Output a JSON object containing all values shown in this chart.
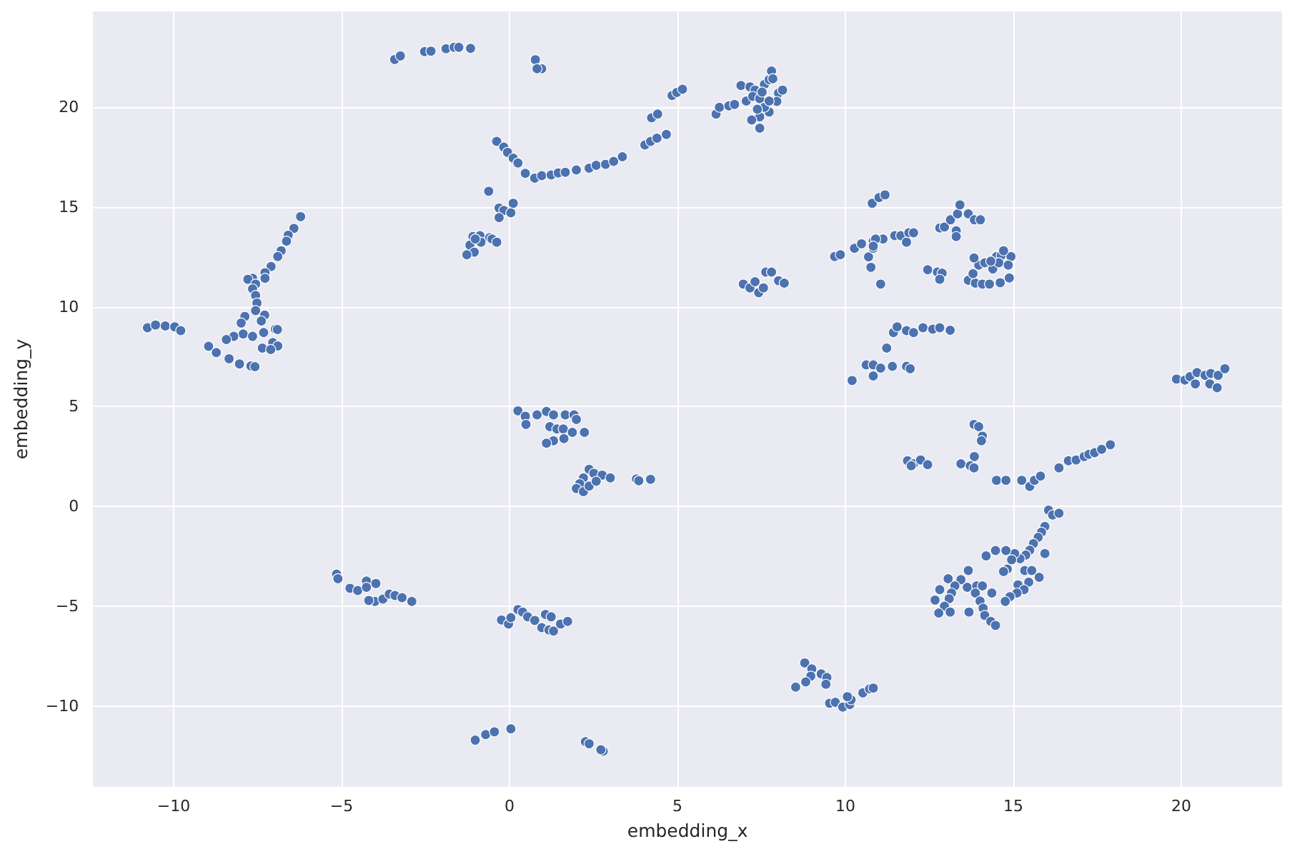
{
  "chart_data": {
    "type": "scatter",
    "xlabel": "embedding_x",
    "ylabel": "embedding_y",
    "marker": "circle",
    "grid": true,
    "color": "#4c72b0",
    "xlim": [
      -12.4,
      23.0
    ],
    "ylim": [
      -14.05,
      24.8
    ],
    "xticks": [
      {
        "value": -10,
        "label": "−10"
      },
      {
        "value": -5,
        "label": "−5"
      },
      0,
      5,
      10,
      15,
      20
    ],
    "yticks": [
      {
        "value": -10,
        "label": "−10"
      },
      {
        "value": -5,
        "label": "−5"
      },
      0,
      5,
      10,
      15,
      20
    ],
    "x": [
      -3.42,
      -3.25,
      -2.53,
      -2.34,
      -1.89,
      -1.65,
      -1.51,
      -1.16,
      -6.22,
      -6.42,
      -6.59,
      -6.64,
      -6.8,
      -6.9,
      -7.1,
      -7.28,
      -7.28,
      -7.65,
      -7.79,
      -7.56,
      -7.65,
      -7.56,
      -7.52,
      -7.56,
      -7.29,
      -7.88,
      -7.99,
      -7.39,
      -6.97,
      -6.91,
      -7.32,
      -7.93,
      -7.65,
      -8.21,
      -8.43,
      -7.05,
      -6.9,
      -7.36,
      -7.11,
      -8.96,
      -8.73,
      -8.35,
      -8.04,
      -7.7,
      -7.58,
      -10.78,
      -10.54,
      -10.25,
      -9.97,
      -9.79,
      -0.41,
      -0.2,
      -0.62,
      -1.09,
      -0.88,
      -0.59,
      -0.52,
      -1.18,
      -1.05,
      -1.27,
      -0.85,
      -1.02,
      -0.38,
      -0.31,
      -0.17,
      0.04,
      0.11,
      -0.31,
      -0.38,
      -0.17,
      -0.06,
      0.11,
      0.25,
      0.47,
      0.75,
      0.96,
      1.24,
      1.45,
      1.66,
      1.99,
      2.37,
      2.58,
      2.86,
      3.1,
      3.36,
      4.03,
      4.2,
      4.39,
      4.67,
      4.23,
      4.41,
      4.84,
      4.98,
      5.15,
      0.77,
      0.96,
      0.82,
      6.15,
      6.25,
      6.53,
      6.7,
      6.89,
      7.05,
      7.16,
      7.31,
      7.24,
      7.45,
      7.59,
      7.73,
      7.8,
      7.84,
      8.01,
      8.13,
      7.96,
      7.73,
      7.45,
      7.21,
      7.45,
      7.59,
      7.38,
      7.52,
      7.73,
      6.96,
      7.16,
      7.42,
      7.56,
      7.63,
      7.8,
      8.01,
      8.18,
      7.31,
      9.68,
      9.85,
      10.27,
      10.48,
      10.69,
      10.83,
      10.76,
      11.05,
      10.83,
      11.12,
      10.8,
      11.0,
      11.18,
      11.21,
      10.62,
      10.83,
      11.05,
      10.83,
      10.2,
      10.9,
      11.47,
      11.65,
      11.89,
      12.03,
      11.82,
      10.83,
      12.81,
      12.95,
      13.13,
      13.3,
      13.34,
      13.41,
      13.66,
      13.84,
      14.02,
      13.3,
      12.45,
      12.74,
      12.88,
      12.81,
      13.66,
      13.87,
      14.08,
      14.29,
      14.61,
      14.88,
      13.8,
      13.97,
      14.15,
      14.39,
      13.83,
      14.5,
      14.64,
      14.93,
      14.71,
      14.57,
      14.85,
      14.33,
      11.23,
      11.43,
      11.54,
      11.82,
      12.03,
      12.31,
      12.6,
      12.81,
      13.12,
      11.4,
      11.82,
      11.93,
      19.86,
      20.11,
      20.26,
      20.47,
      20.42,
      20.71,
      20.85,
      20.88,
      21.07,
      21.1,
      21.3,
      0.25,
      0.47,
      0.49,
      0.82,
      1.1,
      1.31,
      1.66,
      1.92,
      1.99,
      1.2,
      1.41,
      1.6,
      1.87,
      2.23,
      1.62,
      1.31,
      1.1,
      2.37,
      2.51,
      2.76,
      3.0,
      2.2,
      2.09,
      1.99,
      2.2,
      2.37,
      2.58,
      3.78,
      3.85,
      4.2,
      -0.24,
      -0.03,
      0.04,
      0.25,
      0.39,
      0.54,
      0.75,
      0.96,
      1.07,
      1.17,
      1.31,
      1.24,
      1.52,
      1.73,
      -1.02,
      -0.71,
      -0.45,
      0.04,
      2.26,
      2.37,
      2.79,
      2.72,
      8.79,
      9.0,
      8.97,
      8.82,
      8.52,
      9.28,
      9.45,
      9.42,
      9.53,
      9.7,
      9.92,
      10.13,
      10.17,
      10.06,
      10.52,
      10.72,
      10.83,
      -5.15,
      -5.11,
      -4.75,
      -4.52,
      -4.26,
      -3.98,
      -4.26,
      -4.01,
      -4.19,
      -3.77,
      -3.58,
      -3.41,
      -3.2,
      -2.91,
      11.85,
      12.03,
      12.24,
      12.45,
      11.96,
      13.83,
      13.97,
      14.08,
      14.05,
      13.84,
      13.44,
      13.72,
      13.83,
      14.5,
      14.78,
      15.25,
      15.49,
      15.63,
      15.81,
      16.36,
      16.64,
      16.87,
      17.11,
      17.25,
      17.42,
      17.63,
      17.89,
      16.05,
      16.17,
      16.36,
      15.94,
      15.84,
      15.74,
      15.6,
      15.49,
      15.94,
      15.37,
      15.2,
      15.04,
      14.95,
      14.78,
      14.47,
      14.19,
      14.82,
      14.71,
      15.34,
      15.55,
      15.77,
      15.46,
      15.14,
      15.32,
      15.11,
      14.9,
      14.76,
      13.66,
      13.06,
      13.44,
      13.26,
      13.63,
      13.91,
      14.08,
      14.36,
      12.81,
      13.16,
      12.67,
      13.09,
      12.95,
      12.78,
      13.12,
      13.68,
      13.87,
      14.01,
      14.1,
      14.15,
      14.33,
      14.47
    ],
    "values": [
      22.39,
      22.57,
      22.79,
      22.81,
      22.93,
      23.0,
      23.0,
      22.95,
      14.52,
      13.93,
      13.59,
      13.29,
      12.81,
      12.52,
      12.02,
      11.71,
      11.43,
      11.43,
      11.38,
      11.14,
      10.9,
      10.57,
      10.19,
      9.81,
      9.59,
      9.52,
      9.19,
      9.29,
      8.88,
      8.86,
      8.71,
      8.64,
      8.52,
      8.52,
      8.36,
      8.21,
      8.04,
      7.93,
      7.86,
      8.02,
      7.71,
      7.4,
      7.14,
      7.04,
      7.0,
      8.95,
      9.09,
      9.04,
      9.0,
      8.81,
      18.31,
      18.04,
      15.79,
      13.52,
      13.57,
      13.47,
      13.4,
      13.09,
      12.74,
      12.61,
      13.24,
      13.4,
      13.24,
      14.95,
      14.83,
      14.71,
      15.19,
      14.47,
      18.29,
      18.0,
      17.74,
      17.45,
      17.21,
      16.69,
      16.45,
      16.57,
      16.61,
      16.71,
      16.74,
      16.86,
      16.95,
      17.09,
      17.14,
      17.29,
      17.52,
      18.11,
      18.29,
      18.45,
      18.64,
      19.47,
      19.66,
      20.59,
      20.74,
      20.9,
      22.38,
      21.93,
      21.93,
      19.66,
      20.0,
      20.07,
      20.14,
      21.09,
      20.31,
      21.02,
      20.86,
      20.54,
      20.43,
      21.14,
      21.38,
      21.81,
      21.43,
      20.71,
      20.86,
      20.29,
      19.76,
      19.52,
      19.36,
      18.95,
      20.0,
      19.9,
      20.76,
      20.31,
      11.14,
      10.95,
      10.71,
      10.95,
      11.74,
      11.74,
      11.31,
      11.19,
      11.26,
      12.52,
      12.61,
      12.93,
      13.16,
      12.5,
      12.93,
      11.98,
      11.14,
      13.29,
      13.4,
      15.19,
      15.47,
      15.61,
      7.93,
      7.09,
      7.09,
      6.93,
      6.54,
      6.31,
      13.4,
      13.57,
      13.57,
      13.71,
      13.71,
      13.24,
      13.04,
      13.95,
      14.0,
      14.36,
      13.81,
      14.66,
      15.11,
      14.66,
      14.36,
      14.36,
      13.52,
      11.86,
      11.74,
      11.69,
      11.38,
      11.33,
      11.19,
      11.14,
      11.14,
      11.21,
      11.45,
      11.66,
      12.09,
      12.21,
      11.9,
      12.45,
      12.52,
      12.57,
      12.52,
      12.81,
      12.21,
      12.09,
      12.29,
      7.93,
      8.71,
      9.0,
      8.81,
      8.71,
      8.95,
      8.88,
      8.95,
      8.83,
      7.02,
      7.02,
      6.9,
      6.38,
      6.33,
      6.5,
      6.71,
      6.14,
      6.57,
      6.14,
      6.66,
      5.95,
      6.57,
      6.9,
      4.79,
      4.52,
      4.11,
      4.59,
      4.76,
      4.59,
      4.59,
      4.59,
      4.36,
      4.0,
      3.88,
      3.88,
      3.71,
      3.71,
      3.4,
      3.29,
      3.17,
      1.86,
      1.66,
      1.57,
      1.43,
      1.43,
      1.14,
      0.9,
      0.74,
      1.02,
      1.26,
      1.38,
      1.29,
      1.36,
      -5.69,
      -5.89,
      -5.57,
      -5.17,
      -5.29,
      -5.53,
      -5.71,
      -6.07,
      -5.41,
      -6.19,
      -6.24,
      -5.53,
      -5.89,
      -5.76,
      -11.71,
      -11.43,
      -11.29,
      -11.14,
      -11.79,
      -11.89,
      -12.26,
      -12.19,
      -7.84,
      -8.14,
      -8.5,
      -8.79,
      -9.05,
      -8.39,
      -8.57,
      -8.91,
      -9.86,
      -9.81,
      -10.05,
      -9.93,
      -9.69,
      -9.53,
      -9.34,
      -9.14,
      -9.1,
      -3.39,
      -3.62,
      -4.1,
      -4.21,
      -3.74,
      -3.86,
      -4.05,
      -4.76,
      -4.71,
      -4.64,
      -4.39,
      -4.46,
      -4.57,
      -4.76,
      2.29,
      2.14,
      2.33,
      2.09,
      2.04,
      4.11,
      4.0,
      3.52,
      3.29,
      2.5,
      2.14,
      2.04,
      1.93,
      1.31,
      1.31,
      1.31,
      1.0,
      1.31,
      1.52,
      1.93,
      2.29,
      2.33,
      2.5,
      2.61,
      2.69,
      2.86,
      3.09,
      -0.19,
      -0.43,
      -0.34,
      -1.0,
      -1.29,
      -1.55,
      -1.86,
      -2.19,
      -2.36,
      -2.43,
      -2.62,
      -2.36,
      -2.67,
      -2.21,
      -2.21,
      -2.48,
      -3.14,
      -3.26,
      -3.21,
      -3.21,
      -3.55,
      -3.79,
      -3.93,
      -4.17,
      -4.34,
      -4.52,
      -4.76,
      -3.21,
      -3.62,
      -3.67,
      -3.98,
      -4.05,
      -3.98,
      -3.98,
      -4.34,
      -4.17,
      -4.34,
      -4.69,
      -4.62,
      -5.0,
      -5.34,
      -5.29,
      -5.29,
      -4.34,
      -4.74,
      -5.1,
      -5.46,
      -5.76,
      -5.96
    ]
  }
}
